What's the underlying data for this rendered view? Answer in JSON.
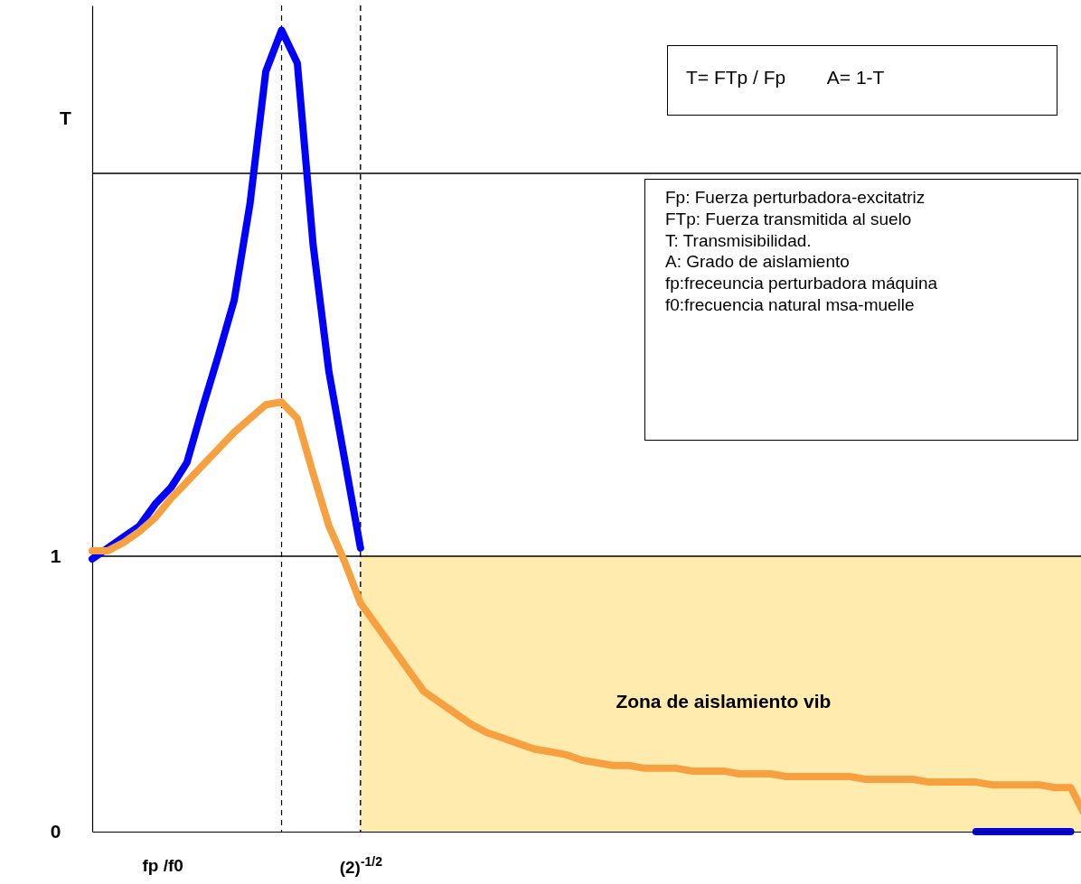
{
  "chart_data": {
    "type": "line",
    "ylabel": "T",
    "xlabel": "fp /f0",
    "categories": [
      null,
      null,
      null,
      null,
      null,
      null,
      null,
      null,
      null,
      null,
      null,
      null,
      null,
      null,
      null,
      null,
      null,
      "(2)$^{-1/2}$",
      null,
      null,
      null,
      null,
      null,
      null,
      null,
      null,
      null,
      null,
      null,
      null,
      null,
      null,
      null,
      null,
      null,
      null,
      null,
      null,
      null,
      null,
      null,
      null,
      null,
      null,
      null,
      null,
      null,
      null,
      null,
      null,
      null,
      null,
      null,
      null,
      null,
      null,
      null,
      null,
      null,
      null,
      null,
      null,
      null,
      null
    ],
    "ylim": [
      0,
      3
    ],
    "yticks": [
      0,
      1
    ],
    "grid": false,
    "marker": "none",
    "line_style": "solid",
    "series": [
      {
        "color": "#0000ff",
        "values": [
          0.99,
          1.03,
          1.07,
          1.11,
          1.19,
          1.25,
          1.34,
          1.54,
          1.73,
          1.93,
          2.28,
          2.76,
          2.91,
          2.79,
          2.13,
          1.67,
          1.35,
          1.03,
          null,
          null,
          null,
          null,
          null,
          null,
          null,
          null,
          null,
          null,
          null,
          null,
          null,
          null,
          null,
          null,
          null,
          null,
          null,
          null,
          null,
          null,
          null,
          null,
          null,
          null,
          null,
          null,
          null,
          null,
          null,
          null,
          null,
          null,
          null,
          null,
          null,
          null,
          0,
          0,
          0,
          0,
          0,
          0,
          0,
          null
        ]
      },
      {
        "color": "#f7a040",
        "values": [
          1.02,
          1.02,
          1.05,
          1.09,
          1.14,
          1.21,
          1.27,
          1.33,
          1.39,
          1.45,
          1.5,
          1.55,
          1.56,
          1.5,
          1.3,
          1.11,
          0.98,
          0.83,
          0.75,
          0.67,
          0.59,
          0.51,
          0.47,
          0.43,
          0.39,
          0.36,
          0.34,
          0.32,
          0.3,
          0.29,
          0.28,
          0.26,
          0.25,
          0.24,
          0.24,
          0.23,
          0.23,
          0.23,
          0.22,
          0.22,
          0.22,
          0.21,
          0.21,
          0.21,
          0.2,
          0.2,
          0.2,
          0.2,
          0.2,
          0.19,
          0.19,
          0.19,
          0.19,
          0.18,
          0.18,
          0.18,
          0.18,
          0.17,
          0.17,
          0.17,
          0.17,
          0.16,
          0.16,
          0.05
        ]
      }
    ],
    "ref_lines": [
      {
        "axis": "y",
        "value": 1,
        "color": "#000000",
        "line_style": "solid"
      },
      {
        "axis": "y",
        "value": 2.39,
        "color": "#000000",
        "line_style": "solid"
      },
      {
        "axis": "x",
        "value": "(2)$^{-1/2}$",
        "color": "#000000",
        "line_style": "dashed"
      }
    ],
    "annotations": [
      "T= FTp / Fp        A= 1-T",
      "Fp: Fuerza perturbadora-excitatriz\nFTp: Fuerza transmitida al suelo\nT: Transmisibilidad.\nA: Grado de aislamiento\nfp:freceuncia perturbadora máquina\nf0:frecuencia natural msa-muelle",
      "Zona de aislamiento vib"
    ]
  }
}
